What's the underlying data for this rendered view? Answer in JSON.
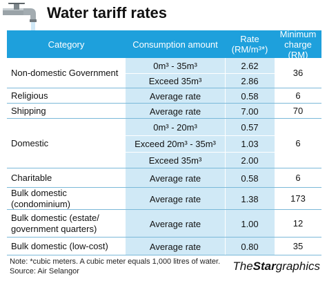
{
  "title": "Water tariff rates",
  "header": {
    "category": "Category",
    "consumption": "Consumption amount",
    "rate": "Rate (RM/m³*)",
    "minimum": "Minimum charge (RM)"
  },
  "rows": [
    {
      "category": "Non-domestic Government",
      "minimum": "36",
      "subs": [
        {
          "amount": "0m³ - 35m³",
          "rate": "2.62"
        },
        {
          "amount": "Exceed 35m³",
          "rate": "2.86"
        }
      ]
    },
    {
      "category": "Religious",
      "minimum": "6",
      "subs": [
        {
          "amount": "Average rate",
          "rate": "0.58"
        }
      ]
    },
    {
      "category": "Shipping",
      "minimum": "70",
      "subs": [
        {
          "amount": "Average rate",
          "rate": "7.00"
        }
      ]
    },
    {
      "category": "Domestic",
      "minimum": "6",
      "subs": [
        {
          "amount": "0m³ - 20m³",
          "rate": "0.57"
        },
        {
          "amount": "Exceed 20m³ - 35m³",
          "rate": "1.03"
        },
        {
          "amount": "Exceed 35m³",
          "rate": "2.00"
        }
      ]
    },
    {
      "category": "Charitable",
      "minimum": "6",
      "subs": [
        {
          "amount": "Average rate",
          "rate": "0.58"
        }
      ]
    },
    {
      "category": "Bulk domestic (condominium)",
      "minimum": "173",
      "subs": [
        {
          "amount": "Average rate",
          "rate": "1.38"
        }
      ]
    },
    {
      "category": "Bulk domestic (estate/ government quarters)",
      "minimum": "12",
      "subs": [
        {
          "amount": "Average rate",
          "rate": "1.00"
        }
      ]
    },
    {
      "category": "Bulk domestic (low-cost)",
      "minimum": "35",
      "subs": [
        {
          "amount": "Average rate",
          "rate": "0.80"
        }
      ]
    }
  ],
  "note": "Note: *cubic meters. A cubic meter equals 1,000 litres of water.",
  "source": "Source: Air Selangor",
  "brand": {
    "the": "The",
    "star": "Star",
    "graphics": "graphics"
  },
  "icons": {
    "tap": "water-tap-icon"
  },
  "colors": {
    "header_bg": "#1ea0dc",
    "cell_bg": "#d0e9f6"
  }
}
